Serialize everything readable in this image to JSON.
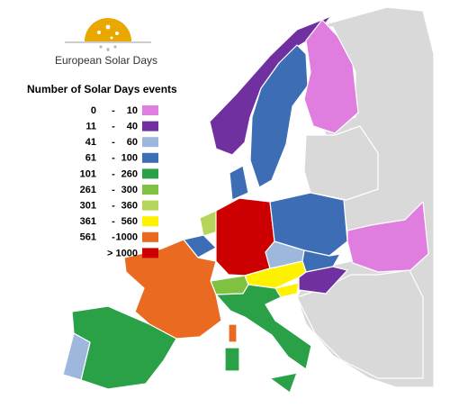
{
  "logo": {
    "text": "European Solar Days"
  },
  "legend": {
    "title": "Number of Solar Days events",
    "separator": "-",
    "rows": [
      {
        "from": 0,
        "to": 10,
        "color": "#e07ee0"
      },
      {
        "from": 11,
        "to": 40,
        "color": "#7030a0"
      },
      {
        "from": 41,
        "to": 60,
        "color": "#9db8dc"
      },
      {
        "from": 61,
        "to": 100,
        "color": "#3d6db4"
      },
      {
        "from": 101,
        "to": 260,
        "color": "#2aa147"
      },
      {
        "from": 261,
        "to": 300,
        "color": "#7fc241"
      },
      {
        "from": 301,
        "to": 360,
        "color": "#b5d65a"
      },
      {
        "from": 361,
        "to": 560,
        "color": "#fff200"
      },
      {
        "from": 561,
        "to": 1000,
        "color": "#ea6a22"
      },
      {
        "label": "> 1000",
        "color": "#cc0000"
      }
    ]
  },
  "no_data_color": "#d9d9d9"
}
